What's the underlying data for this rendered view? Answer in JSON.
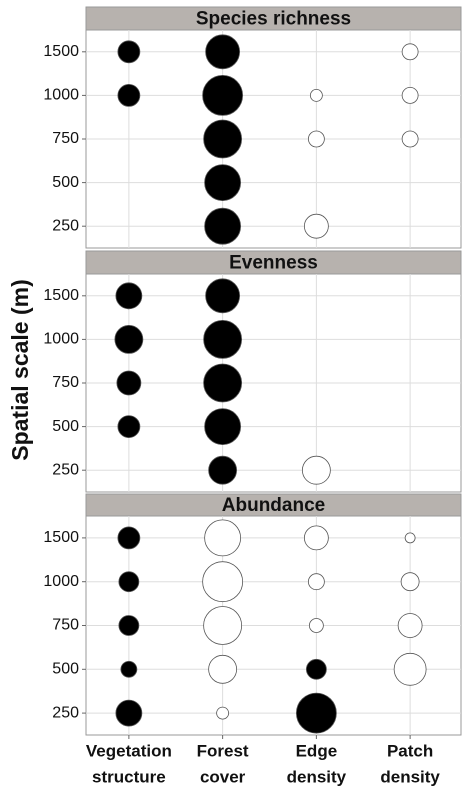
{
  "y_label": "Spatial scale (m)",
  "categories": [
    [
      "Vegetation",
      "structure"
    ],
    [
      "Forest",
      "cover"
    ],
    [
      "Edge",
      "density"
    ],
    [
      "Patch",
      "density"
    ]
  ],
  "chart_data": [
    {
      "type": "bubble",
      "title": "Species  richness",
      "yticks": [
        250,
        500,
        750,
        1000,
        1500
      ],
      "sizes": [
        [
          null,
          null,
          null,
          11,
          11
        ],
        [
          18,
          18,
          19,
          20,
          17
        ],
        [
          12,
          null,
          8,
          6,
          null
        ],
        [
          null,
          null,
          8,
          8,
          8
        ]
      ],
      "fills": [
        [
          null,
          null,
          null,
          "#000000",
          "#000000"
        ],
        [
          "#000000",
          "#000000",
          "#000000",
          "#000000",
          "#000000"
        ],
        [
          "#ffffff",
          null,
          "#ffffff",
          "#ffffff",
          null
        ],
        [
          null,
          null,
          "#ffffff",
          "#ffffff",
          "#ffffff"
        ]
      ]
    },
    {
      "type": "bubble",
      "title": "Evenness",
      "yticks": [
        250,
        500,
        750,
        1000,
        1500
      ],
      "sizes": [
        [
          null,
          11,
          12,
          14,
          13
        ],
        [
          14,
          18,
          19,
          19,
          17
        ],
        [
          14,
          null,
          null,
          null,
          null
        ],
        [
          null,
          null,
          null,
          null,
          null
        ]
      ],
      "fills": [
        [
          null,
          "#000000",
          "#000000",
          "#000000",
          "#000000"
        ],
        [
          "#000000",
          "#000000",
          "#000000",
          "#000000",
          "#000000"
        ],
        [
          "#ffffff",
          null,
          null,
          null,
          null
        ],
        [
          null,
          null,
          null,
          null,
          null
        ]
      ]
    },
    {
      "type": "bubble",
      "title": "Abundance",
      "yticks": [
        250,
        500,
        750,
        1000,
        1500
      ],
      "sizes": [
        [
          13,
          8,
          10,
          10,
          11
        ],
        [
          6,
          14,
          19,
          20,
          18
        ],
        [
          20,
          10,
          7,
          8,
          12
        ],
        [
          null,
          16,
          12,
          9,
          5
        ]
      ],
      "fills": [
        [
          "#000000",
          "#000000",
          "#000000",
          "#000000",
          "#000000"
        ],
        [
          "#ffffff",
          "#ffffff",
          "#ffffff",
          "#ffffff",
          "#ffffff"
        ],
        [
          "#000000",
          "#000000",
          "#ffffff",
          "#ffffff",
          "#ffffff"
        ],
        [
          null,
          "#ffffff",
          "#ffffff",
          "#ffffff",
          "#ffffff"
        ]
      ]
    }
  ]
}
